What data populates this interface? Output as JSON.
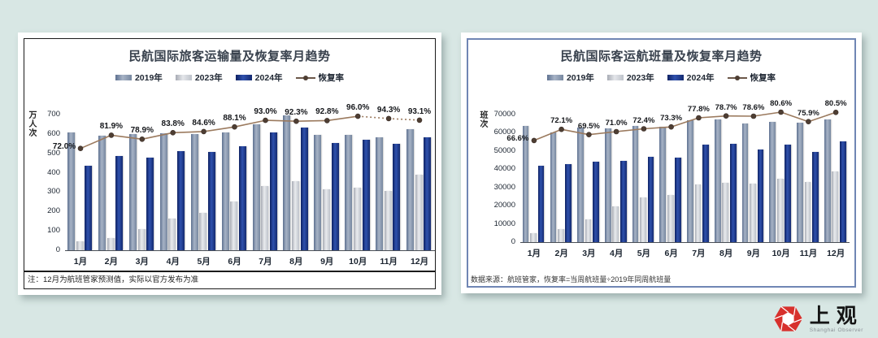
{
  "page": {
    "background": "#d8e7e4"
  },
  "colors": {
    "bar_2019": "#7b8da8",
    "bar_2023": "#c9cdd4",
    "bar_2024": "#1d3a8e",
    "recovery_line": "#9b7a5e",
    "card_border_left": "#1b1b1b",
    "card_border_right": "#7086b4",
    "logo_red": "#d7302c"
  },
  "chart_data": [
    {
      "type": "bar",
      "title": "民航国际旅客运输量及恢复率月趋势",
      "ylabel": "万人次",
      "legend": [
        "2019年",
        "2023年",
        "2024年",
        "恢复率"
      ],
      "legend_position": "top",
      "categories": [
        "1月",
        "2月",
        "3月",
        "4月",
        "5月",
        "6月",
        "7月",
        "8月",
        "9月",
        "10月",
        "11月",
        "12月"
      ],
      "ylim": [
        0,
        700
      ],
      "yticks": [
        0,
        100,
        200,
        300,
        400,
        500,
        600,
        700
      ],
      "grid": false,
      "series": [
        {
          "name": "2019年",
          "values": [
            610,
            592,
            600,
            605,
            600,
            607,
            650,
            698,
            595,
            595,
            583,
            625
          ]
        },
        {
          "name": "2023年",
          "values": [
            45,
            65,
            110,
            165,
            195,
            250,
            330,
            355,
            315,
            325,
            305,
            390
          ]
        },
        {
          "name": "2024年",
          "values": [
            435,
            488,
            477,
            510,
            508,
            535,
            610,
            635,
            553,
            570,
            550,
            583
          ]
        }
      ],
      "line_series": {
        "name": "恢复率",
        "values": [
          72.0,
          81.9,
          78.9,
          83.8,
          84.6,
          88.1,
          93.0,
          92.3,
          92.8,
          96.0,
          94.3,
          93.1
        ],
        "unit": "%",
        "dashed_from_index": 9
      },
      "note": "注：12月为航班管家预测值，实际以官方发布为准"
    },
    {
      "type": "bar",
      "title": "民航国际客运航班量及恢复率月趋势",
      "ylabel": "班次",
      "legend": [
        "2019年",
        "2023年",
        "2024年",
        "恢复率"
      ],
      "legend_position": "top",
      "categories": [
        "1月",
        "2月",
        "3月",
        "4月",
        "5月",
        "6月",
        "7月",
        "8月",
        "9月",
        "10月",
        "11月",
        "12月"
      ],
      "ylim": [
        0,
        70000
      ],
      "yticks": [
        0,
        10000,
        20000,
        30000,
        40000,
        50000,
        60000,
        70000
      ],
      "grid": false,
      "series": [
        {
          "name": "2019年",
          "values": [
            64000,
            60000,
            63000,
            62500,
            64000,
            63500,
            67000,
            67500,
            65000,
            66000,
            65500,
            67500
          ]
        },
        {
          "name": "2023年",
          "values": [
            5000,
            7000,
            12500,
            19500,
            24500,
            26000,
            31500,
            32500,
            32000,
            35000,
            33000,
            39000
          ]
        },
        {
          "name": "2024年",
          "values": [
            42000,
            43000,
            44000,
            44500,
            47000,
            46500,
            53500,
            54000,
            51000,
            53500,
            49500,
            55500
          ]
        }
      ],
      "line_series": {
        "name": "恢复率",
        "values": [
          66.6,
          72.1,
          69.5,
          71.0,
          72.4,
          73.3,
          77.8,
          78.7,
          78.6,
          80.6,
          75.9,
          80.5
        ],
        "unit": "%",
        "dashed_from_index": null
      },
      "note": "数据来源：航班管家，恢复率=当周航班量÷2019年同周航班量"
    }
  ],
  "logo": {
    "name": "上观",
    "subtitle": "Shanghai Observer"
  }
}
